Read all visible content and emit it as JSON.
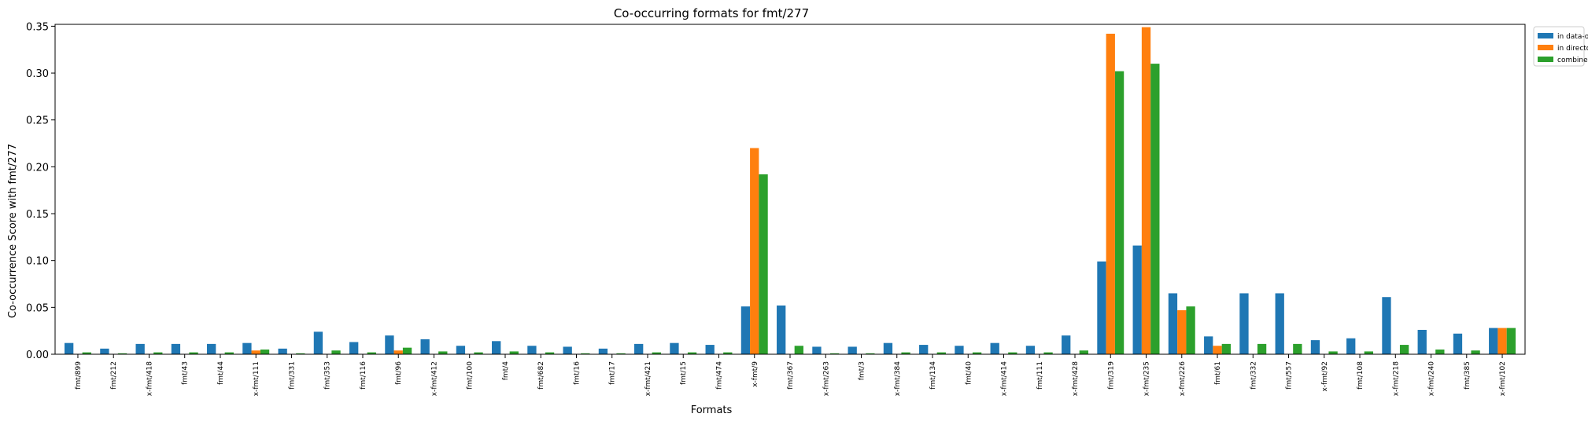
{
  "chart_data": {
    "type": "bar",
    "title": "Co-occurring formats for fmt/277",
    "xlabel": "Formats",
    "ylabel": "Co-occurrence Score with fmt/277",
    "ylim": [
      0,
      0.352
    ],
    "yticks": [
      0.0,
      0.05,
      0.1,
      0.15,
      0.2,
      0.25,
      0.3,
      0.35
    ],
    "ytick_labels": [
      "0.00",
      "0.05",
      "0.10",
      "0.15",
      "0.20",
      "0.25",
      "0.30",
      "0.35"
    ],
    "grid": false,
    "legend_placement": "outside-top-right",
    "categories": [
      "fmt/899",
      "fmt/212",
      "x-fmt/418",
      "fmt/43",
      "fmt/44",
      "x-fmt/111",
      "fmt/331",
      "fmt/353",
      "fmt/116",
      "fmt/96",
      "x-fmt/412",
      "fmt/100",
      "fmt/4",
      "fmt/682",
      "fmt/16",
      "fmt/17",
      "x-fmt/421",
      "fmt/15",
      "fmt/474",
      "x-fmt/9",
      "fmt/367",
      "x-fmt/263",
      "fmt/3",
      "x-fmt/384",
      "fmt/134",
      "fmt/40",
      "x-fmt/414",
      "fmt/111",
      "x-fmt/428",
      "fmt/319",
      "x-fmt/235",
      "x-fmt/226",
      "fmt/61",
      "fmt/332",
      "fmt/557",
      "x-fmt/92",
      "fmt/108",
      "x-fmt/218",
      "x-fmt/240",
      "fmt/385",
      "x-fmt/102"
    ],
    "series": [
      {
        "name": "in data-objects",
        "color": "#1f77b4",
        "values": [
          0.012,
          0.006,
          0.011,
          0.011,
          0.011,
          0.012,
          0.006,
          0.024,
          0.013,
          0.02,
          0.016,
          0.009,
          0.014,
          0.009,
          0.008,
          0.006,
          0.011,
          0.012,
          0.01,
          0.051,
          0.052,
          0.008,
          0.008,
          0.012,
          0.01,
          0.009,
          0.012,
          0.009,
          0.02,
          0.099,
          0.116,
          0.065,
          0.019,
          0.065,
          0.065,
          0.015,
          0.017,
          0.061,
          0.026,
          0.022,
          0.028
        ]
      },
      {
        "name": "in directories",
        "color": "#ff7f0e",
        "values": [
          0.0003,
          0.0003,
          0.0003,
          0.0003,
          0.0003,
          0.004,
          0.0003,
          0.0003,
          0.0003,
          0.004,
          0.0003,
          0.0003,
          0.0003,
          0.0003,
          0.0003,
          0.0003,
          0.0003,
          0.0003,
          0.0003,
          0.22,
          0.0003,
          0.0003,
          0.0003,
          0.0003,
          0.0003,
          0.0003,
          0.0003,
          0.0003,
          0.0003,
          0.342,
          0.349,
          0.047,
          0.009,
          0.0003,
          0.0003,
          0.0003,
          0.0003,
          0.0003,
          0.0003,
          0.0003,
          0.028
        ]
      },
      {
        "name": "combined",
        "color": "#2ca02c",
        "values": [
          0.002,
          0.001,
          0.002,
          0.002,
          0.002,
          0.005,
          0.001,
          0.004,
          0.002,
          0.007,
          0.003,
          0.002,
          0.003,
          0.002,
          0.001,
          0.001,
          0.002,
          0.002,
          0.002,
          0.192,
          0.009,
          0.001,
          0.001,
          0.002,
          0.002,
          0.002,
          0.002,
          0.002,
          0.004,
          0.302,
          0.31,
          0.051,
          0.011,
          0.011,
          0.011,
          0.003,
          0.003,
          0.01,
          0.005,
          0.004,
          0.028
        ]
      }
    ]
  }
}
